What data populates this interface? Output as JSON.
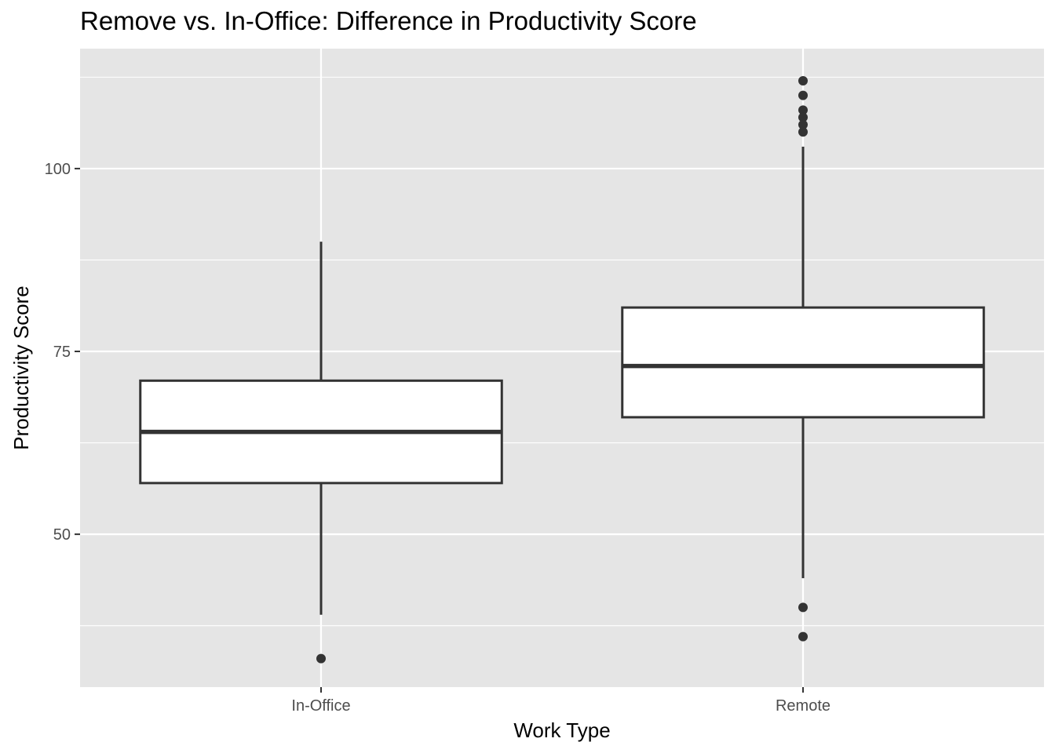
{
  "chart_data": {
    "type": "boxplot",
    "title": "Remove vs. In-Office: Difference in Productivity Score",
    "xlabel": "Work Type",
    "ylabel": "Productivity Score",
    "ylim": [
      29.1,
      116.4
    ],
    "y_ticks": [
      50,
      75,
      100
    ],
    "grid": true,
    "categories": [
      "In-Office",
      "Remote"
    ],
    "boxes": [
      {
        "category": "In-Office",
        "whisker_low": 39,
        "q1": 57,
        "median": 64,
        "q3": 71,
        "whisker_high": 90,
        "outliers": [
          33
        ]
      },
      {
        "category": "Remote",
        "whisker_low": 44,
        "q1": 66,
        "median": 73,
        "q3": 81,
        "whisker_high": 103,
        "outliers": [
          112,
          110,
          108,
          107,
          106,
          105,
          40,
          36
        ]
      }
    ]
  },
  "colors": {
    "panel_background": "#e5e5e5",
    "grid": "#ffffff",
    "box_fill": "#ffffff",
    "box_line": "#333333",
    "point": "#333333"
  }
}
